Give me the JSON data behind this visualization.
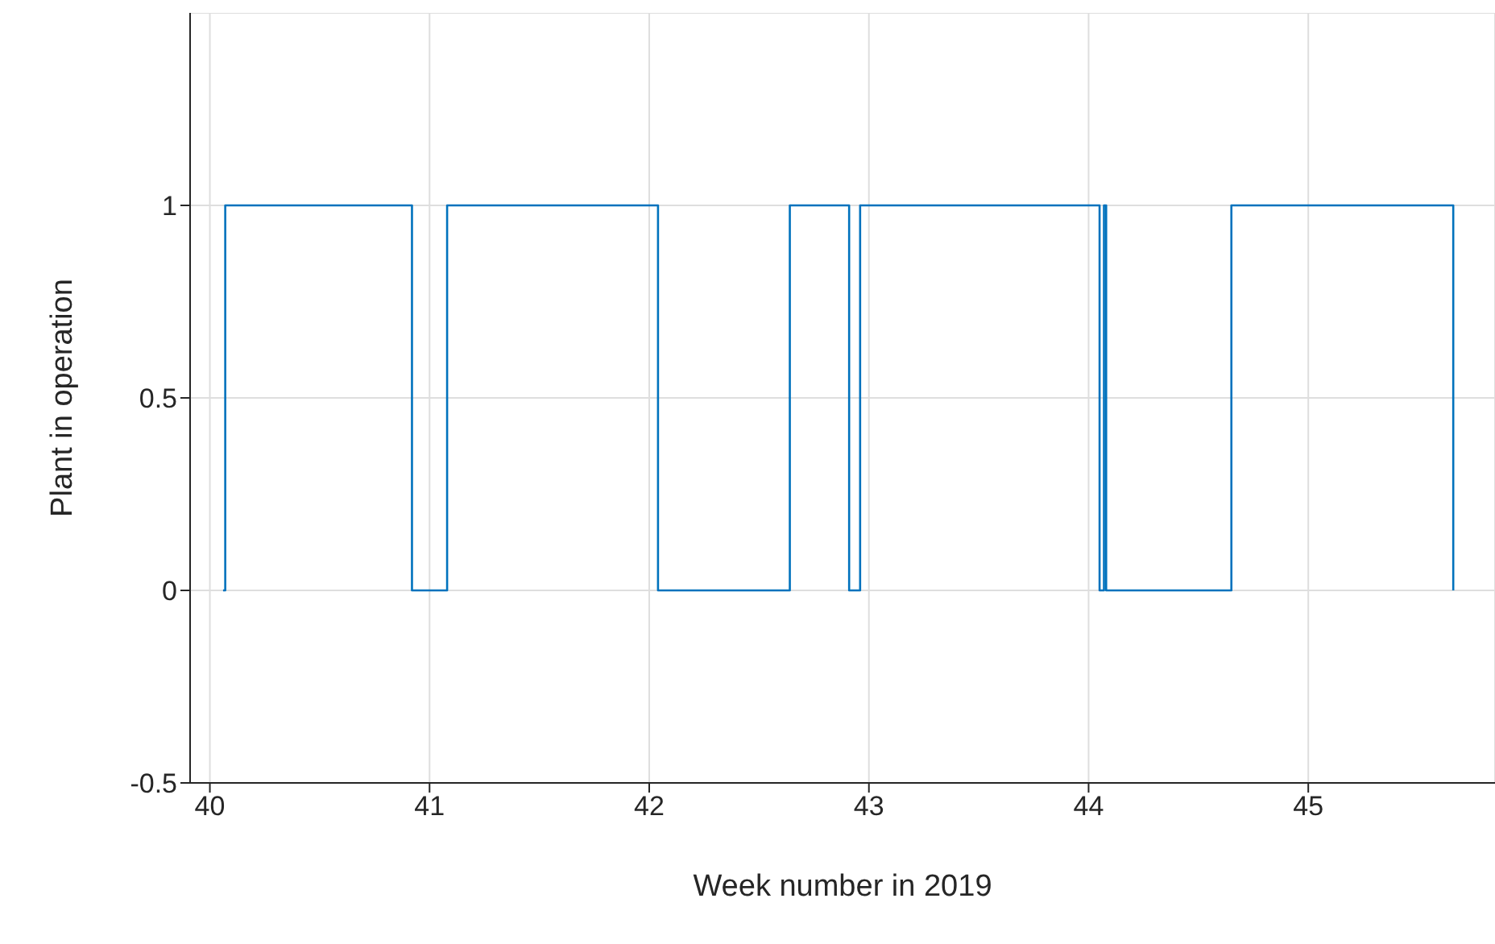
{
  "chart_data": {
    "type": "step",
    "xlabel": "Week number in 2019",
    "ylabel": "Plant in operation",
    "x": [
      40.06,
      40.07,
      40.92,
      41.08,
      42.04,
      42.64,
      42.91,
      42.96,
      44.05,
      44.07,
      44.08,
      44.65,
      45.66
    ],
    "series": [
      {
        "color": "#0072bd",
        "values": [
          0,
          1,
          0,
          1,
          0,
          1,
          0,
          1,
          0,
          1,
          0,
          1,
          0
        ]
      }
    ],
    "xlim": [
      39.91,
      45.85
    ],
    "xticks": [
      40,
      41,
      42,
      43,
      44,
      45
    ],
    "ylim": [
      -0.5,
      1.5
    ],
    "yticks": [
      -0.5,
      0,
      0.5,
      1
    ],
    "grid": true,
    "legend": false,
    "marker": "none",
    "line_style": "solid"
  }
}
